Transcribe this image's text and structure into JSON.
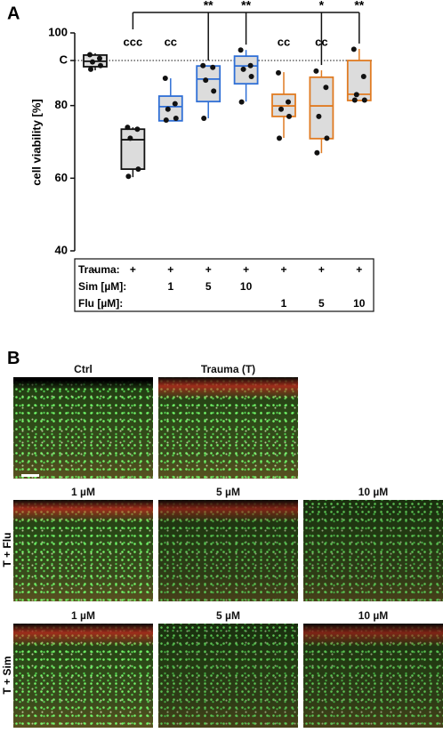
{
  "chart_data": {
    "type": "box",
    "panel_label": "A",
    "ylabel": "cell viability [%]",
    "ylim": [
      40,
      100
    ],
    "yticks": [
      40,
      60,
      80,
      {
        "value": 92.4,
        "label": "C"
      },
      100
    ],
    "groups": [
      {
        "color": "#111111",
        "min": 89.7,
        "q1": 90.7,
        "median": 92.2,
        "q3": 93.9,
        "max": 94.4,
        "points": [
          94,
          93,
          92,
          91,
          90
        ],
        "label_above": null,
        "bracket_label": null
      },
      {
        "color": "#111111",
        "min": 60.3,
        "q1": 62.5,
        "median": 70.6,
        "q3": 73.5,
        "max": 74,
        "points": [
          74,
          73.5,
          71,
          62.5,
          60.5
        ],
        "label_above": "ccc",
        "bracket_label": null
      },
      {
        "color": "#2f6fd6",
        "min": 75.8,
        "q1": 75.8,
        "median": 79.7,
        "q3": 82.6,
        "max": 87.5,
        "points": [
          87.5,
          80.5,
          79,
          76.5,
          76
        ],
        "label_above": "cc",
        "bracket_label": null
      },
      {
        "color": "#2f6fd6",
        "min": 76.5,
        "q1": 81.1,
        "median": 87.3,
        "q3": 90.9,
        "max": 90.9,
        "points": [
          91,
          90.5,
          87,
          84,
          76.5
        ],
        "label_above": null,
        "bracket_label": "**"
      },
      {
        "color": "#2f6fd6",
        "min": 81.1,
        "q1": 86,
        "median": 90.9,
        "q3": 93.6,
        "max": 95.3,
        "points": [
          95.3,
          91,
          90,
          88,
          81
        ],
        "label_above": null,
        "bracket_label": "**"
      },
      {
        "color": "#e07b22",
        "min": 71.1,
        "q1": 77,
        "median": 79.9,
        "q3": 83.1,
        "max": 89.2,
        "points": [
          89,
          81,
          79,
          77,
          71
        ],
        "label_above": "cc",
        "bracket_label": null
      },
      {
        "color": "#e07b22",
        "min": 66.9,
        "q1": 70.9,
        "median": 79.9,
        "q3": 87.8,
        "max": 89.7,
        "points": [
          89.5,
          85,
          77,
          71,
          67
        ],
        "label_above": "cc",
        "bracket_label": "*"
      },
      {
        "color": "#e07b22",
        "min": 81.4,
        "q1": 81.4,
        "median": 83.1,
        "q3": 92.4,
        "max": 95.6,
        "points": [
          95.5,
          88,
          83,
          81.5,
          81.5
        ],
        "label_above": null,
        "bracket_label": "**"
      }
    ],
    "conditions": [
      {
        "name": "Trauma:",
        "values": [
          "-",
          "+",
          "+",
          "+",
          "+",
          "+",
          "+",
          "+"
        ]
      },
      {
        "name": "Sim [µM]:",
        "values": [
          null,
          null,
          1,
          5,
          10,
          null,
          null,
          null
        ]
      },
      {
        "name": "Flu [µM]:",
        "values": [
          null,
          null,
          null,
          null,
          null,
          1,
          5,
          10
        ]
      }
    ]
  },
  "panel_b": {
    "label": "B",
    "rows": [
      {
        "label": null,
        "captions": [
          "Ctrl",
          "Trauma (T)"
        ]
      },
      {
        "label": "T + Flu",
        "captions": [
          "1 µM",
          "5 µM",
          "10 µM"
        ]
      },
      {
        "label": "T + Sim",
        "captions": [
          "1 µM",
          "5 µM",
          "10 µM"
        ]
      }
    ]
  }
}
